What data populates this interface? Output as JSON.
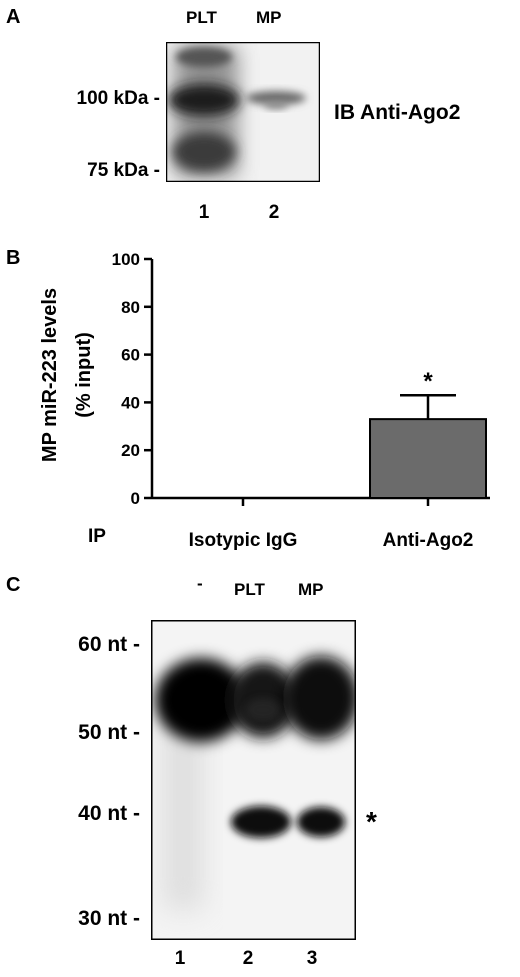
{
  "panel_a": {
    "label": "A",
    "lane_headers": [
      "PLT",
      "MP"
    ],
    "markers": [
      "100 kDa -",
      "75 kDa -"
    ],
    "blot_label": "IB Anti-Ago2",
    "lane_numbers": [
      "1",
      "2"
    ]
  },
  "panel_b": {
    "label": "B",
    "ip_label": "IP"
  },
  "chart_data": {
    "type": "bar",
    "categories": [
      "Isotypic IgG",
      "Anti-Ago2"
    ],
    "values": [
      0,
      33
    ],
    "errors": [
      0,
      10
    ],
    "significance": [
      "",
      "*"
    ],
    "ylabel": "MP miR-223 levels (% input)",
    "ylabel_lines": [
      "MP miR-223 levels",
      "(% input)"
    ],
    "yticks": [
      0,
      20,
      40,
      60,
      80,
      100
    ],
    "ylim": [
      0,
      100
    ],
    "bar_color": "#6b6b6b"
  },
  "panel_c": {
    "label": "C",
    "lane_headers": [
      "-",
      "PLT",
      "MP"
    ],
    "markers": [
      "60 nt -",
      "50 nt -",
      "40 nt -",
      "30 nt -"
    ],
    "asterisk": "*",
    "lane_numbers": [
      "1",
      "2",
      "3"
    ]
  }
}
